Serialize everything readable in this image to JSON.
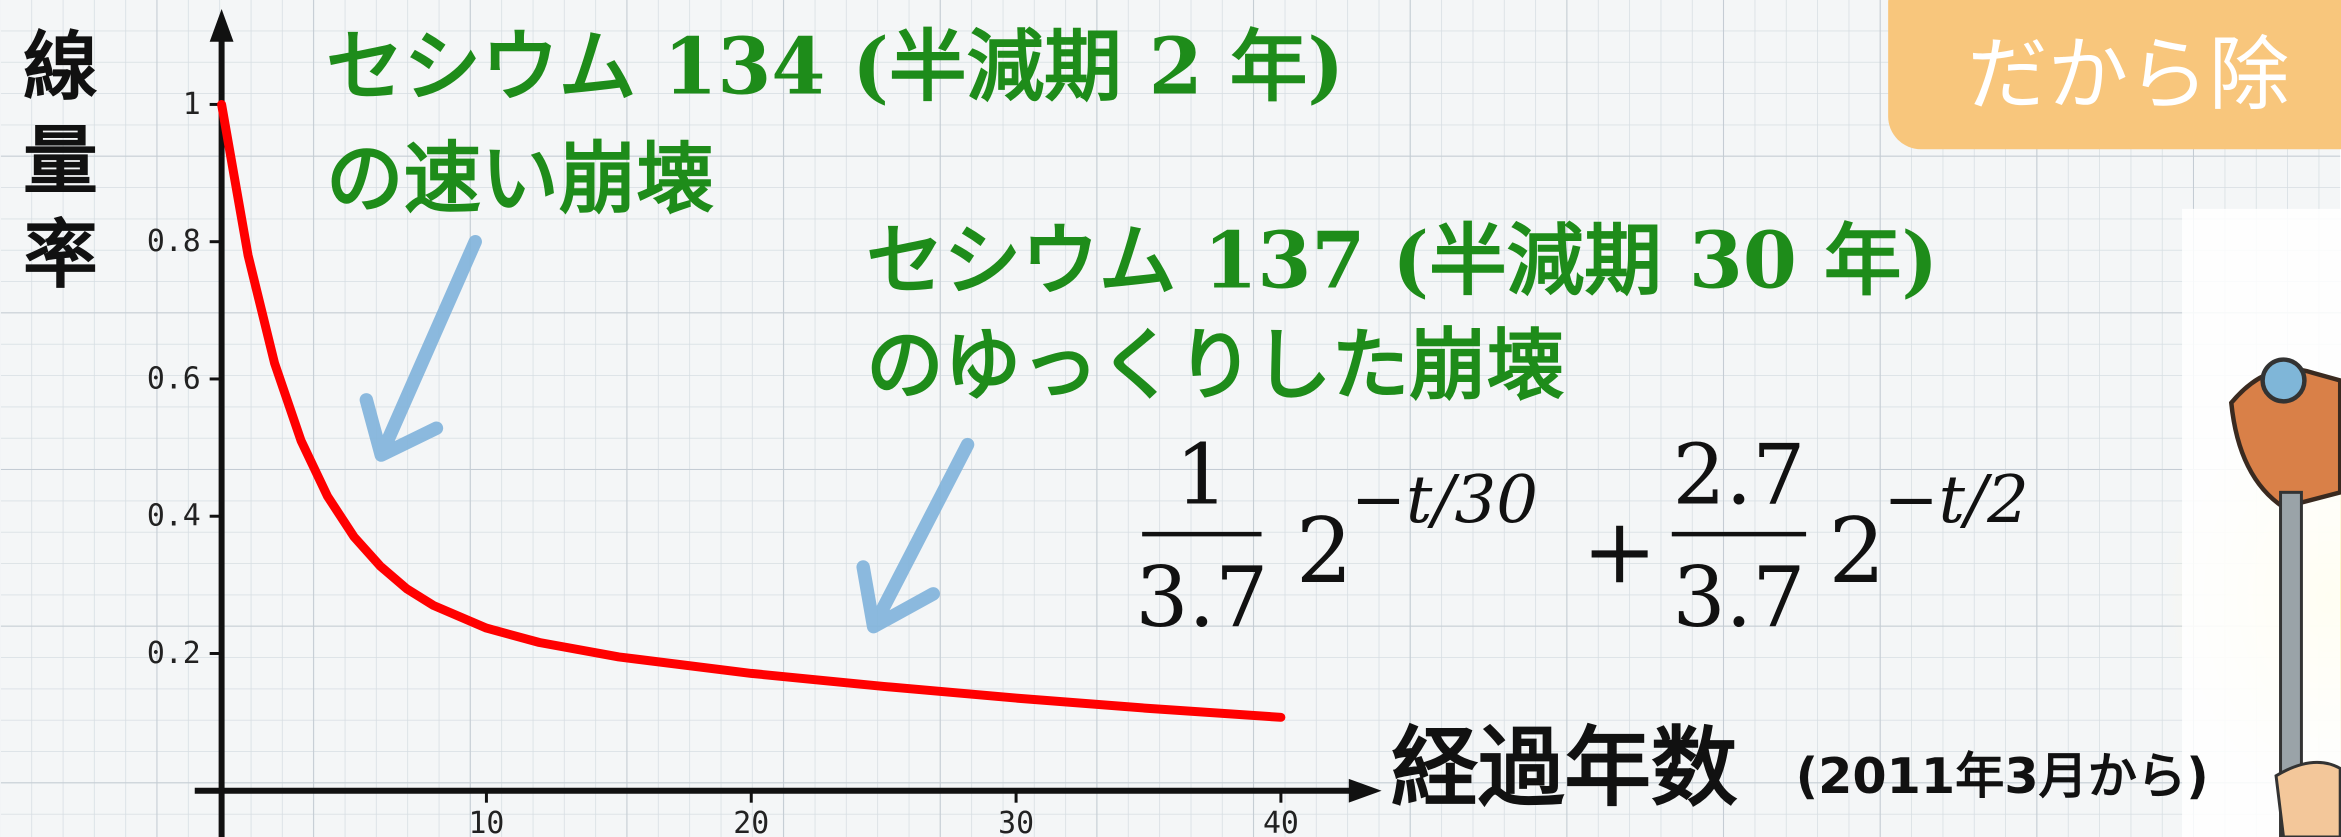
{
  "button": {
    "label": "だから除"
  },
  "chart_data": {
    "type": "line",
    "y_label": [
      "線",
      "量",
      "率"
    ],
    "x_label": "経過年数",
    "x_sublabel": "(2011年3月から)",
    "annotations": [
      "セシウム 134 (半減期 2 年)",
      "の速い崩壊",
      "セシウム 137 (半減期 30 年)",
      "のゆっくりした崩壊"
    ],
    "formula": [
      "1",
      "3.7",
      "2",
      "−t/30",
      "+",
      "2.7",
      "3.7",
      "2",
      "−t/2"
    ],
    "x": [
      0,
      1,
      2,
      3,
      4,
      5,
      6,
      7,
      8,
      10,
      12,
      15,
      20,
      25,
      30,
      35,
      40
    ],
    "values": [
      1,
      0.78,
      0.623,
      0.51,
      0.429,
      0.37,
      0.327,
      0.294,
      0.27,
      0.237,
      0.216,
      0.195,
      0.171,
      0.152,
      0.135,
      0.12,
      0.107
    ],
    "color": "#ff0000",
    "xlim": [
      0,
      42
    ],
    "ylim": [
      0,
      1.1
    ],
    "xticks": [
      10,
      20,
      30,
      40
    ],
    "yticks": [
      0.2,
      0.4,
      0.6,
      0.8,
      1
    ]
  }
}
